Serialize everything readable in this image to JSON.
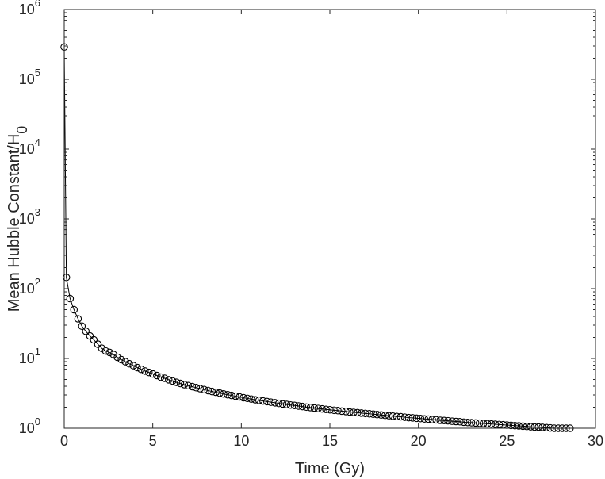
{
  "chart_data": {
    "type": "line",
    "xlabel": "Time (Gy)",
    "ylabel_main": "Mean Hubble Constant/H",
    "ylabel_sub": "0",
    "xlim": [
      0,
      30
    ],
    "ylim": [
      1,
      1000000
    ],
    "yscale": "log",
    "grid": false,
    "legend": "none",
    "marker": "open-circle",
    "line_color": "#000000",
    "x_ticks": [
      {
        "value": 0,
        "label": "0"
      },
      {
        "value": 5,
        "label": "5"
      },
      {
        "value": 10,
        "label": "10"
      },
      {
        "value": 15,
        "label": "15"
      },
      {
        "value": 20,
        "label": "20"
      },
      {
        "value": 25,
        "label": "25"
      },
      {
        "value": 30,
        "label": "30"
      }
    ],
    "y_ticks": [
      {
        "value": 1,
        "base": "10",
        "exp": "0"
      },
      {
        "value": 10,
        "base": "10",
        "exp": "1"
      },
      {
        "value": 100,
        "base": "10",
        "exp": "2"
      },
      {
        "value": 1000,
        "base": "10",
        "exp": "3"
      },
      {
        "value": 10000,
        "base": "10",
        "exp": "4"
      },
      {
        "value": 100000,
        "base": "10",
        "exp": "5"
      },
      {
        "value": 1000000,
        "base": "10",
        "exp": "6"
      }
    ],
    "series": [
      {
        "x": [
          0.0,
          0.12,
          0.33,
          0.55,
          0.78,
          1.0,
          1.22,
          1.45,
          1.67,
          1.9,
          2.12,
          2.34,
          2.56,
          2.78,
          3.0,
          3.23,
          3.45,
          3.67,
          3.9,
          4.12,
          4.34,
          4.56,
          4.78,
          5.0,
          5.23,
          5.45,
          5.67,
          5.9,
          6.12,
          6.34,
          6.56,
          6.78,
          7.0,
          7.23,
          7.45,
          7.67,
          7.9,
          8.12,
          8.34,
          8.56,
          8.78,
          9.0,
          9.23,
          9.45,
          9.67,
          9.9,
          10.12,
          10.34,
          10.56,
          10.78,
          11.0,
          11.23,
          11.45,
          11.67,
          11.9,
          12.12,
          12.34,
          12.56,
          12.78,
          13.0,
          13.23,
          13.45,
          13.67,
          13.9,
          14.12,
          14.34,
          14.56,
          14.78,
          15.0,
          15.23,
          15.45,
          15.67,
          15.9,
          16.12,
          16.34,
          16.56,
          16.78,
          17.0,
          17.23,
          17.45,
          17.67,
          17.9,
          18.12,
          18.34,
          18.56,
          18.78,
          19.0,
          19.23,
          19.45,
          19.67,
          19.9,
          20.12,
          20.34,
          20.56,
          20.78,
          21.0,
          21.23,
          21.45,
          21.67,
          21.9,
          22.12,
          22.34,
          22.56,
          22.78,
          23.0,
          23.23,
          23.45,
          23.67,
          23.9,
          24.12,
          24.34,
          24.56,
          24.78,
          25.0,
          25.23,
          25.45,
          25.67,
          25.9,
          26.12,
          26.34,
          26.56,
          26.78,
          27.0,
          27.23,
          27.45,
          27.67,
          27.9,
          28.12,
          28.34,
          28.56
        ],
        "y": [
          290000,
          145,
          72,
          50,
          37,
          29,
          24.5,
          21,
          18.5,
          16,
          14,
          12.8,
          12.2,
          11.4,
          10.4,
          9.6,
          9.0,
          8.4,
          7.9,
          7.4,
          7.0,
          6.6,
          6.3,
          6.0,
          5.7,
          5.4,
          5.2,
          4.95,
          4.75,
          4.55,
          4.38,
          4.22,
          4.08,
          3.95,
          3.82,
          3.7,
          3.58,
          3.47,
          3.37,
          3.28,
          3.19,
          3.1,
          3.02,
          2.95,
          2.88,
          2.81,
          2.74,
          2.68,
          2.62,
          2.56,
          2.51,
          2.46,
          2.41,
          2.36,
          2.32,
          2.27,
          2.23,
          2.19,
          2.15,
          2.12,
          2.08,
          2.05,
          2.01,
          1.98,
          1.95,
          1.92,
          1.89,
          1.86,
          1.84,
          1.81,
          1.79,
          1.76,
          1.74,
          1.71,
          1.69,
          1.67,
          1.65,
          1.63,
          1.61,
          1.59,
          1.57,
          1.55,
          1.53,
          1.51,
          1.49,
          1.47,
          1.46,
          1.44,
          1.42,
          1.41,
          1.39,
          1.38,
          1.36,
          1.35,
          1.33,
          1.32,
          1.3,
          1.29,
          1.28,
          1.26,
          1.25,
          1.24,
          1.22,
          1.21,
          1.2,
          1.19,
          1.18,
          1.17,
          1.16,
          1.15,
          1.14,
          1.13,
          1.12,
          1.11,
          1.1,
          1.09,
          1.08,
          1.07,
          1.06,
          1.05,
          1.04,
          1.04,
          1.03,
          1.02,
          1.01,
          1.0,
          1.0,
          1.0,
          1.0,
          1.0
        ]
      }
    ]
  }
}
